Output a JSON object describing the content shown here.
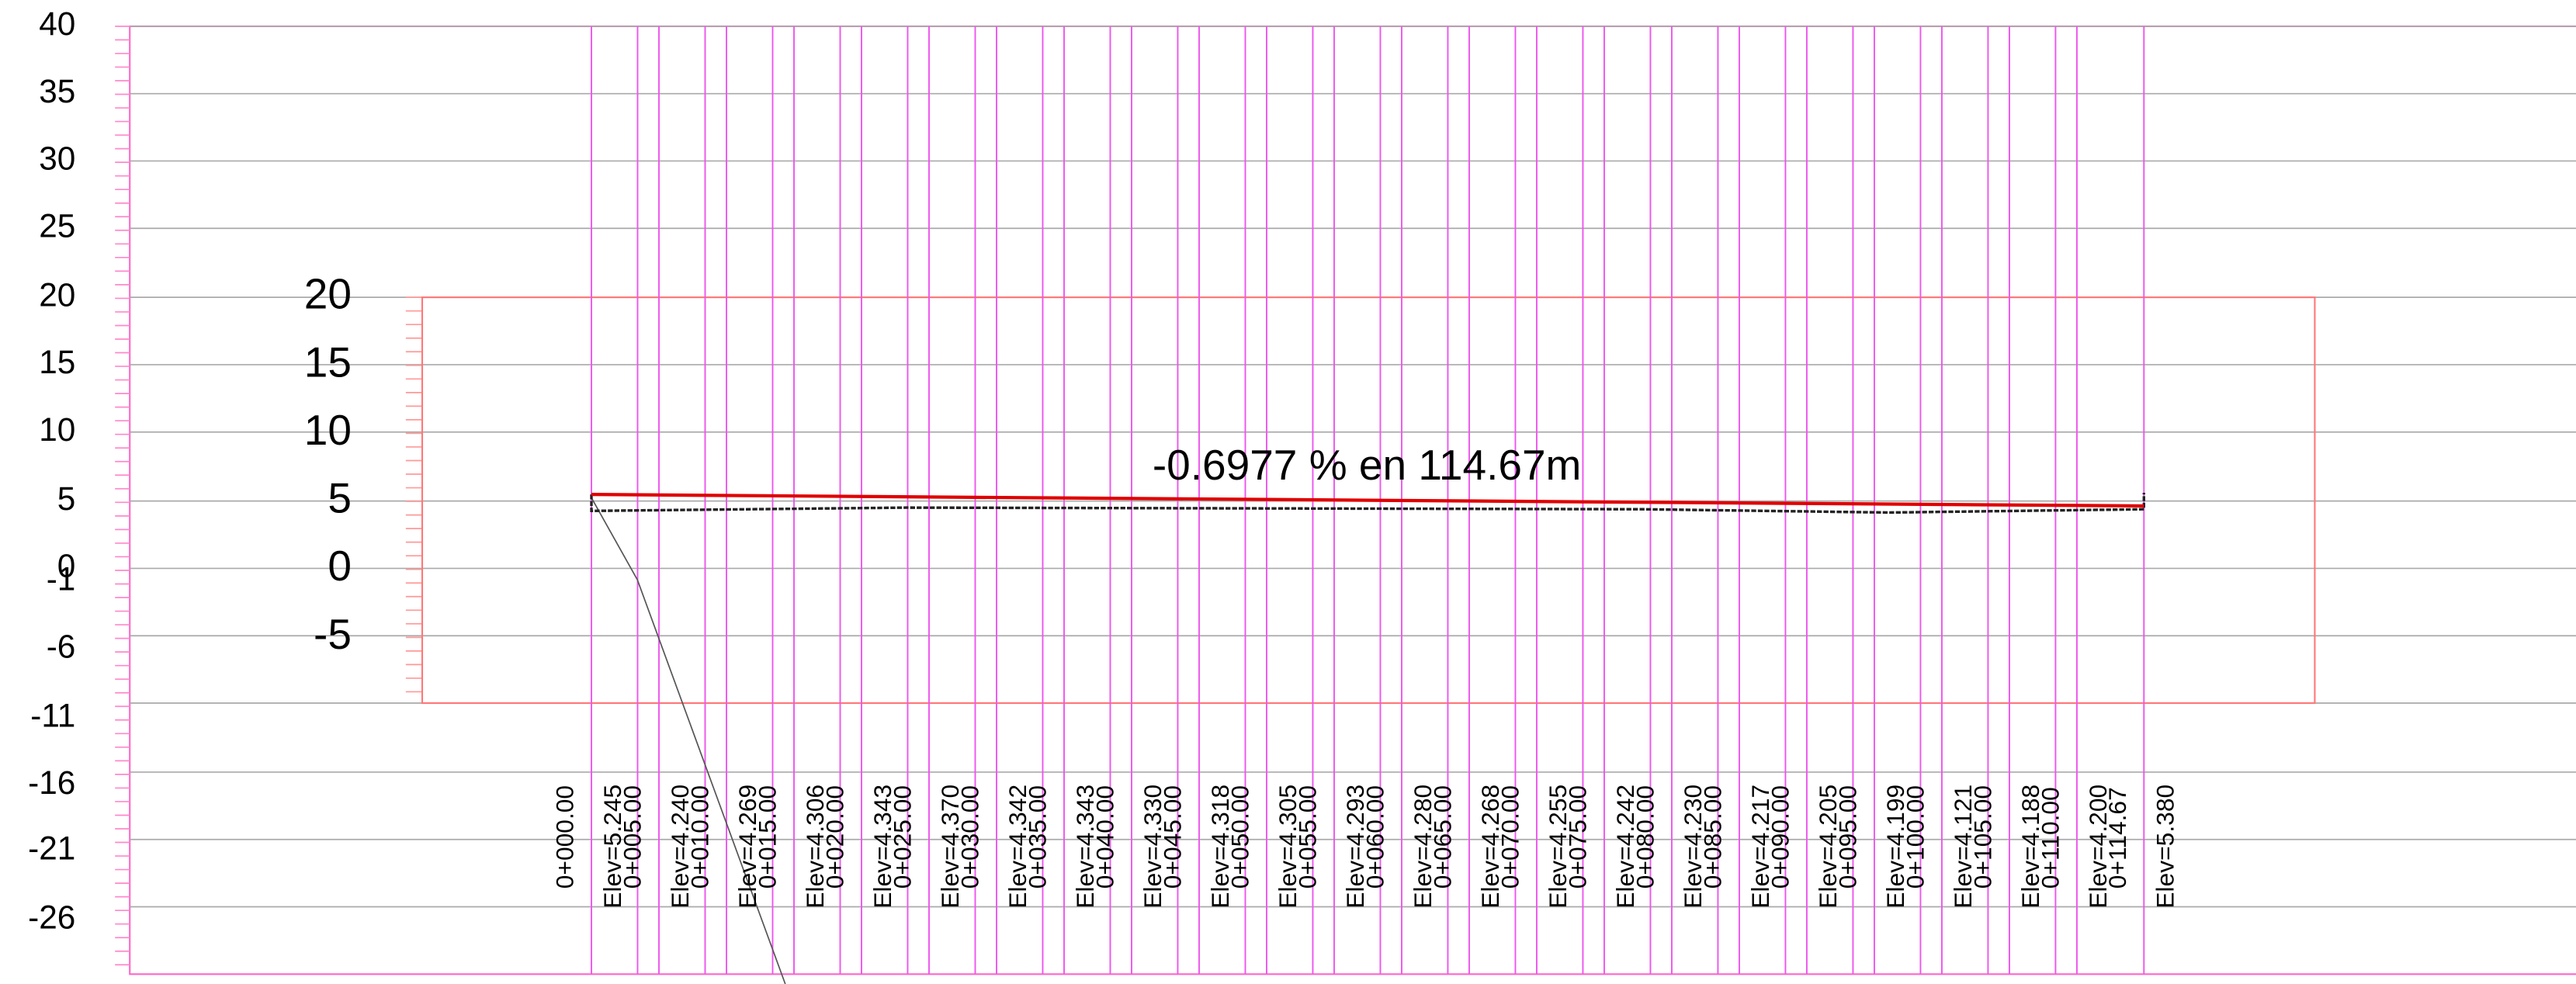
{
  "profile": {
    "outer_axis_labels": [
      "40",
      "35",
      "30",
      "25",
      "20",
      "15",
      "10",
      "5",
      "0",
      "-1",
      "-6",
      "-11",
      "-16",
      "-21",
      "-26"
    ],
    "inner_axis_labels": [
      "20",
      "15",
      "10",
      "5",
      "0",
      "-5"
    ],
    "grade_label": "-0.6977 % en 114.67m",
    "stations": [
      "0+000.00",
      "0+005.00",
      "0+010.00",
      "0+015.00",
      "0+020.00",
      "0+025.00",
      "0+030.00",
      "0+035.00",
      "0+040.00",
      "0+045.00",
      "0+050.00",
      "0+055.00",
      "0+060.00",
      "0+065.00",
      "0+070.00",
      "0+075.00",
      "0+080.00",
      "0+085.00",
      "0+090.00",
      "0+095.00",
      "0+100.00",
      "0+105.00",
      "0+110.00",
      "0+114.67"
    ],
    "elevations": [
      "Elev=5.245",
      "Elev=4.240",
      "Elev=4.269",
      "Elev=4.306",
      "Elev=4.343",
      "Elev=4.370",
      "Elev=4.342",
      "Elev=4.343",
      "Elev=4.330",
      "Elev=4.318",
      "Elev=4.305",
      "Elev=4.293",
      "Elev=4.280",
      "Elev=4.268",
      "Elev=4.255",
      "Elev=4.242",
      "Elev=4.230",
      "Elev=4.217",
      "Elev=4.205",
      "Elev=4.199",
      "Elev=4.121",
      "Elev=4.188",
      "Elev=4.200",
      "Elev=5.380"
    ]
  }
}
